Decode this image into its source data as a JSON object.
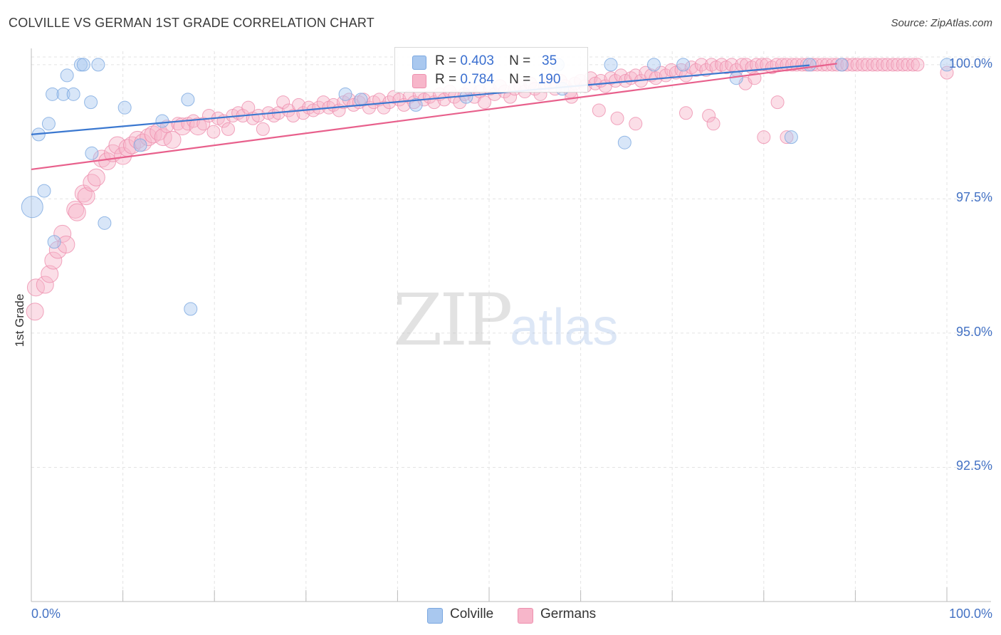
{
  "header": {
    "title": "COLVILLE VS GERMAN 1ST GRADE CORRELATION CHART",
    "source": "Source: ZipAtlas.com"
  },
  "watermark": {
    "zip": "ZIP",
    "atlas": "atlas"
  },
  "legend": {
    "rows": [
      {
        "r_label": "R =",
        "r_value": "0.403",
        "n_label": "N =",
        "n_value": "35"
      },
      {
        "r_label": "R =",
        "r_value": "0.784",
        "n_label": "N =",
        "n_value": "190"
      }
    ]
  },
  "bottom_legend": {
    "series1": "Colville",
    "series2": "Germans"
  },
  "colors": {
    "colville_fill": "#a9c8ef",
    "colville_stroke": "#7aa7e0",
    "colville_line": "#3b78d0",
    "germans_fill": "#f7b6ca",
    "germans_stroke": "#ee8fae",
    "germans_line": "#e8608c",
    "tick_label": "#4472c4",
    "grid": "#e3e3e3"
  },
  "chart_data": {
    "type": "scatter",
    "title": "COLVILLE VS GERMAN 1ST GRADE CORRELATION CHART",
    "xlabel": "",
    "ylabel": "1st Grade",
    "xlim": [
      0,
      100
    ],
    "ylim": [
      90,
      100.25
    ],
    "x_tick_labels": [
      "0.0%",
      "100.0%"
    ],
    "y_ticks": [
      {
        "value": 100,
        "label": "100.0%"
      },
      {
        "value": 97.5,
        "label": "97.5%"
      },
      {
        "value": 95,
        "label": "95.0%"
      },
      {
        "value": 92.5,
        "label": "92.5%"
      }
    ],
    "grid": true,
    "series": [
      {
        "name": "Colville",
        "r": 0.403,
        "n": 35,
        "trend": [
          [
            0,
            98.7
          ],
          [
            85,
            99.99
          ]
        ],
        "points": [
          [
            0.1,
            97.35,
            3
          ],
          [
            0.8,
            98.7,
            1
          ],
          [
            1.4,
            97.65,
            1
          ],
          [
            1.9,
            98.9,
            1
          ],
          [
            2.3,
            99.45,
            1
          ],
          [
            2.5,
            96.7,
            1
          ],
          [
            3.5,
            99.45,
            1
          ],
          [
            3.9,
            99.8,
            1
          ],
          [
            4.6,
            99.45,
            1
          ],
          [
            5.4,
            100.0,
            1
          ],
          [
            5.7,
            100.0,
            1
          ],
          [
            6.5,
            99.3,
            1
          ],
          [
            6.6,
            98.35,
            1
          ],
          [
            7.3,
            100.0,
            1
          ],
          [
            8.0,
            97.05,
            1
          ],
          [
            10.2,
            99.2,
            1
          ],
          [
            11.9,
            98.5,
            1
          ],
          [
            14.3,
            98.95,
            1
          ],
          [
            17.1,
            99.35,
            1
          ],
          [
            17.4,
            95.45,
            1
          ],
          [
            34.3,
            99.45,
            1
          ],
          [
            36.0,
            99.35,
            1
          ],
          [
            42.0,
            99.25,
            1
          ],
          [
            47.5,
            99.4,
            1
          ],
          [
            58.0,
            99.55,
            1
          ],
          [
            63.3,
            100.0,
            1
          ],
          [
            64.8,
            98.55,
            1
          ],
          [
            68.0,
            100.0,
            1
          ],
          [
            71.2,
            100.0,
            1
          ],
          [
            77.0,
            99.75,
            1
          ],
          [
            83.0,
            98.65,
            1
          ],
          [
            85.0,
            100.0,
            1
          ],
          [
            88.5,
            100.0,
            1
          ],
          [
            100.0,
            100.0,
            1
          ],
          [
            57.5,
            100.0,
            1
          ]
        ]
      },
      {
        "name": "Germans",
        "r": 0.784,
        "n": 190,
        "trend": [
          [
            0,
            98.05
          ],
          [
            88,
            100.02
          ]
        ],
        "points": [
          [
            0.4,
            95.4,
            2
          ],
          [
            0.5,
            95.85,
            2
          ],
          [
            1.5,
            95.9,
            2
          ],
          [
            2.0,
            96.1,
            2
          ],
          [
            2.4,
            96.35,
            2
          ],
          [
            2.9,
            96.55,
            2
          ],
          [
            3.4,
            96.85,
            2
          ],
          [
            3.8,
            96.65,
            2
          ],
          [
            4.8,
            97.3,
            2
          ],
          [
            5.0,
            97.25,
            2
          ],
          [
            5.7,
            97.6,
            2
          ],
          [
            6.0,
            97.55,
            2
          ],
          [
            6.6,
            97.8,
            2
          ],
          [
            7.1,
            97.9,
            2
          ],
          [
            7.7,
            98.25,
            2
          ],
          [
            8.3,
            98.2,
            2
          ],
          [
            8.9,
            98.35,
            2
          ],
          [
            9.4,
            98.5,
            2
          ],
          [
            10.0,
            98.3,
            2
          ],
          [
            10.5,
            98.45,
            2
          ],
          [
            11.0,
            98.5,
            2
          ],
          [
            11.6,
            98.6,
            2
          ],
          [
            12.2,
            98.55,
            2
          ],
          [
            12.8,
            98.65,
            2
          ],
          [
            13.3,
            98.7,
            2
          ],
          [
            13.9,
            98.75,
            2
          ],
          [
            14.4,
            98.65,
            2
          ],
          [
            14.8,
            98.85,
            1
          ],
          [
            15.4,
            98.6,
            2
          ],
          [
            16.0,
            98.9,
            1
          ],
          [
            16.5,
            98.85,
            2
          ],
          [
            17.1,
            98.9,
            1
          ],
          [
            17.7,
            98.95,
            1
          ],
          [
            18.2,
            98.85,
            2
          ],
          [
            18.8,
            98.9,
            1
          ],
          [
            19.4,
            99.05,
            1
          ],
          [
            19.9,
            98.75,
            1
          ],
          [
            20.4,
            99.0,
            1
          ],
          [
            21.0,
            98.95,
            1
          ],
          [
            21.5,
            98.8,
            1
          ],
          [
            22.0,
            99.05,
            1
          ],
          [
            22.6,
            99.1,
            1
          ],
          [
            23.1,
            99.05,
            1
          ],
          [
            23.7,
            99.2,
            1
          ],
          [
            24.2,
            99.0,
            1
          ],
          [
            24.8,
            99.05,
            1
          ],
          [
            25.3,
            98.8,
            1
          ],
          [
            25.9,
            99.1,
            1
          ],
          [
            26.5,
            99.05,
            1
          ],
          [
            27.0,
            99.1,
            1
          ],
          [
            27.5,
            99.3,
            1
          ],
          [
            28.1,
            99.15,
            1
          ],
          [
            28.6,
            99.05,
            1
          ],
          [
            29.2,
            99.25,
            1
          ],
          [
            29.7,
            99.1,
            1
          ],
          [
            30.3,
            99.2,
            1
          ],
          [
            30.8,
            99.15,
            1
          ],
          [
            31.4,
            99.2,
            1
          ],
          [
            31.9,
            99.3,
            1
          ],
          [
            32.5,
            99.2,
            1
          ],
          [
            33.0,
            99.25,
            1
          ],
          [
            33.6,
            99.15,
            1
          ],
          [
            34.1,
            99.3,
            1
          ],
          [
            34.7,
            99.35,
            1
          ],
          [
            35.2,
            99.25,
            1
          ],
          [
            35.8,
            99.3,
            1
          ],
          [
            36.3,
            99.35,
            1
          ],
          [
            36.9,
            99.2,
            1
          ],
          [
            37.4,
            99.3,
            1
          ],
          [
            38.0,
            99.35,
            1
          ],
          [
            38.5,
            99.2,
            1
          ],
          [
            39.1,
            99.3,
            1
          ],
          [
            39.6,
            99.4,
            1
          ],
          [
            40.2,
            99.35,
            1
          ],
          [
            40.7,
            99.25,
            1
          ],
          [
            41.3,
            99.4,
            1
          ],
          [
            41.8,
            99.3,
            1
          ],
          [
            42.4,
            99.45,
            1
          ],
          [
            42.9,
            99.35,
            1
          ],
          [
            43.5,
            99.4,
            1
          ],
          [
            44.0,
            99.3,
            1
          ],
          [
            44.6,
            99.45,
            1
          ],
          [
            45.1,
            99.35,
            1
          ],
          [
            45.7,
            99.5,
            1
          ],
          [
            46.2,
            99.4,
            1
          ],
          [
            46.8,
            99.3,
            1
          ],
          [
            47.3,
            99.45,
            1
          ],
          [
            47.9,
            99.55,
            1
          ],
          [
            48.4,
            99.4,
            1
          ],
          [
            49.0,
            99.5,
            1
          ],
          [
            49.5,
            99.3,
            1
          ],
          [
            50.1,
            99.55,
            1
          ],
          [
            50.6,
            99.45,
            1
          ],
          [
            51.2,
            99.6,
            1
          ],
          [
            51.7,
            99.5,
            1
          ],
          [
            52.3,
            99.4,
            1
          ],
          [
            52.8,
            99.55,
            1
          ],
          [
            53.4,
            99.6,
            1
          ],
          [
            53.9,
            99.5,
            1
          ],
          [
            54.5,
            99.65,
            1
          ],
          [
            55.0,
            99.55,
            1
          ],
          [
            55.6,
            99.45,
            1
          ],
          [
            56.1,
            99.6,
            1
          ],
          [
            56.7,
            99.65,
            1
          ],
          [
            57.2,
            99.55,
            1
          ],
          [
            57.8,
            99.7,
            1
          ],
          [
            58.3,
            99.6,
            1
          ],
          [
            58.9,
            99.5,
            1
          ],
          [
            59.4,
            99.65,
            1
          ],
          [
            60.0,
            99.7,
            1
          ],
          [
            60.5,
            99.6,
            1
          ],
          [
            61.1,
            99.75,
            1
          ],
          [
            61.6,
            99.65,
            1
          ],
          [
            62.2,
            99.7,
            1
          ],
          [
            62.7,
            99.6,
            1
          ],
          [
            63.3,
            99.75,
            1
          ],
          [
            63.8,
            99.7,
            1
          ],
          [
            64.4,
            99.8,
            1
          ],
          [
            64.9,
            99.7,
            1
          ],
          [
            65.5,
            99.75,
            1
          ],
          [
            66.0,
            99.8,
            1
          ],
          [
            66.6,
            99.7,
            1
          ],
          [
            67.1,
            99.85,
            1
          ],
          [
            67.7,
            99.8,
            1
          ],
          [
            68.2,
            99.75,
            1
          ],
          [
            68.8,
            99.85,
            1
          ],
          [
            69.3,
            99.8,
            1
          ],
          [
            69.9,
            99.9,
            1
          ],
          [
            70.4,
            99.85,
            1
          ],
          [
            71.0,
            99.9,
            1
          ],
          [
            71.5,
            99.8,
            1
          ],
          [
            72.1,
            99.95,
            1
          ],
          [
            72.6,
            99.9,
            1
          ],
          [
            73.2,
            100.0,
            1
          ],
          [
            73.7,
            99.9,
            1
          ],
          [
            74.3,
            100.0,
            1
          ],
          [
            74.8,
            99.95,
            1
          ],
          [
            75.4,
            100.0,
            1
          ],
          [
            75.9,
            99.95,
            1
          ],
          [
            76.5,
            100.0,
            1
          ],
          [
            77.0,
            99.9,
            1
          ],
          [
            77.6,
            100.0,
            1
          ],
          [
            78.1,
            100.0,
            1
          ],
          [
            78.7,
            99.95,
            1
          ],
          [
            79.2,
            100.0,
            1
          ],
          [
            79.8,
            100.0,
            1
          ],
          [
            80.3,
            100.0,
            1
          ],
          [
            80.9,
            99.95,
            1
          ],
          [
            81.4,
            100.0,
            1
          ],
          [
            82.0,
            100.0,
            1
          ],
          [
            82.5,
            100.0,
            1
          ],
          [
            83.1,
            100.0,
            1
          ],
          [
            83.6,
            100.0,
            1
          ],
          [
            84.2,
            100.0,
            1
          ],
          [
            84.7,
            100.0,
            1
          ],
          [
            85.3,
            100.0,
            1
          ],
          [
            85.8,
            100.0,
            1
          ],
          [
            86.4,
            100.0,
            1
          ],
          [
            86.9,
            100.0,
            1
          ],
          [
            87.5,
            100.0,
            1
          ],
          [
            88.0,
            100.0,
            1
          ],
          [
            88.6,
            100.0,
            1
          ],
          [
            89.1,
            100.0,
            1
          ],
          [
            89.7,
            100.0,
            1
          ],
          [
            90.2,
            100.0,
            1
          ],
          [
            90.8,
            100.0,
            1
          ],
          [
            91.3,
            100.0,
            1
          ],
          [
            91.9,
            100.0,
            1
          ],
          [
            92.4,
            100.0,
            1
          ],
          [
            93.0,
            100.0,
            1
          ],
          [
            93.5,
            100.0,
            1
          ],
          [
            94.1,
            100.0,
            1
          ],
          [
            94.6,
            100.0,
            1
          ],
          [
            95.2,
            100.0,
            1
          ],
          [
            95.7,
            100.0,
            1
          ],
          [
            96.3,
            100.0,
            1
          ],
          [
            96.8,
            100.0,
            1
          ],
          [
            100.0,
            99.85,
            1
          ],
          [
            59.0,
            99.4,
            1
          ],
          [
            62.0,
            99.15,
            1
          ],
          [
            64.0,
            99.0,
            1
          ],
          [
            66.0,
            98.9,
            1
          ],
          [
            71.5,
            99.1,
            1
          ],
          [
            74.0,
            99.05,
            1
          ],
          [
            74.5,
            98.9,
            1
          ],
          [
            78.0,
            99.65,
            1
          ],
          [
            79.0,
            99.75,
            1
          ],
          [
            80.0,
            98.65,
            1
          ],
          [
            81.5,
            99.3,
            1
          ],
          [
            82.5,
            98.65,
            1
          ]
        ]
      }
    ]
  }
}
